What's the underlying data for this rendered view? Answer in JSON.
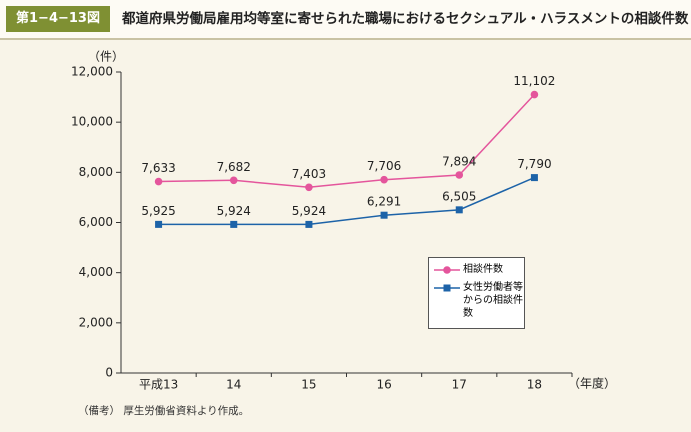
{
  "header": {
    "label": "第1−4−13図",
    "title": "都道府県労働局雇用均等室に寄せられた職場におけるセクシュアル・ハラスメントの相談件数"
  },
  "chart_data": {
    "type": "line",
    "y_label": "（件）",
    "x_label": "（年度）",
    "categories": [
      "平成13",
      "14",
      "15",
      "16",
      "17",
      "18"
    ],
    "series": [
      {
        "name": "相談件数",
        "color": "#e4559c",
        "marker": "circle",
        "values": [
          7633,
          7682,
          7403,
          7706,
          7894,
          11102
        ],
        "value_labels": [
          "7,633",
          "7,682",
          "7,403",
          "7,706",
          "7,894",
          "11,102"
        ]
      },
      {
        "name": "女性労働者等からの相談件数",
        "color": "#1d63a8",
        "marker": "square",
        "values": [
          5925,
          5924,
          5924,
          6291,
          6505,
          7790
        ],
        "value_labels": [
          "5,925",
          "5,924",
          "5,924",
          "6,291",
          "6,505",
          "7,790"
        ]
      }
    ],
    "ylim": [
      0,
      12000
    ],
    "yticks": [
      0,
      {
        "value": 2000,
        "label": "2,000"
      },
      {
        "value": 4000,
        "label": "4,000"
      },
      {
        "value": 6000,
        "label": "6,000"
      },
      {
        "value": 8000,
        "label": "8,000"
      },
      {
        "value": 10000,
        "label": "10,000"
      },
      {
        "value": 12000,
        "label": "12,000"
      }
    ],
    "grid": false,
    "legend": "lower-right"
  },
  "note": "（備考） 厚生労働省資料より作成。"
}
